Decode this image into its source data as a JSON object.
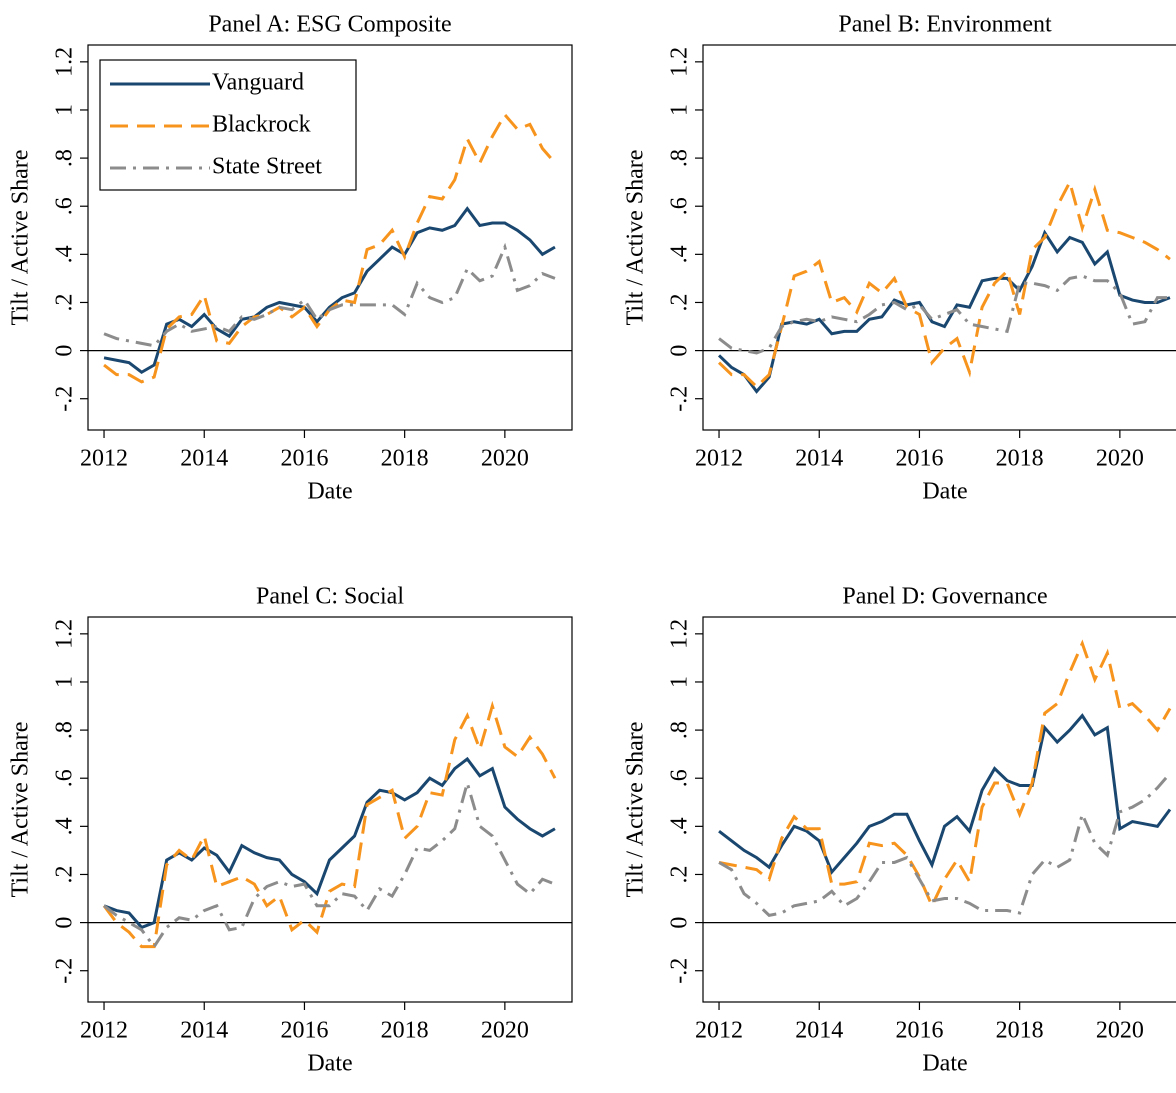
{
  "chart_data": [
    {
      "type": "line",
      "title": "Panel A: ESG Composite",
      "xlabel": "Date",
      "ylabel": "Tilt / Active Share",
      "x": [
        2012,
        2012.25,
        2012.5,
        2012.75,
        2013,
        2013.25,
        2013.5,
        2013.75,
        2014,
        2014.25,
        2014.5,
        2014.75,
        2015,
        2015.25,
        2015.5,
        2015.75,
        2016,
        2016.25,
        2016.5,
        2016.75,
        2017,
        2017.25,
        2017.5,
        2017.75,
        2018,
        2018.25,
        2018.5,
        2018.75,
        2019,
        2019.25,
        2019.5,
        2019.75,
        2020,
        2020.25,
        2020.5,
        2020.75,
        2021
      ],
      "series": [
        {
          "name": "Vanguard",
          "color": "#1a476f",
          "dash": "solid",
          "values": [
            -0.03,
            -0.04,
            -0.05,
            -0.09,
            -0.06,
            0.11,
            0.13,
            0.1,
            0.15,
            0.09,
            0.06,
            0.13,
            0.14,
            0.18,
            0.2,
            0.19,
            0.18,
            0.12,
            0.18,
            0.22,
            0.24,
            0.33,
            0.38,
            0.43,
            0.4,
            0.49,
            0.51,
            0.5,
            0.52,
            0.59,
            0.52,
            0.53,
            0.53,
            0.5,
            0.46,
            0.4,
            0.43
          ]
        },
        {
          "name": "Blackrock",
          "color": "#f7941d",
          "dash": "dashed",
          "values": [
            -0.06,
            -0.1,
            -0.1,
            -0.13,
            -0.11,
            0.09,
            0.14,
            0.15,
            0.23,
            0.04,
            0.03,
            0.1,
            0.14,
            0.15,
            0.18,
            0.14,
            0.18,
            0.1,
            0.17,
            0.21,
            0.2,
            0.42,
            0.44,
            0.5,
            0.39,
            0.53,
            0.64,
            0.63,
            0.71,
            0.88,
            0.78,
            0.89,
            0.98,
            0.92,
            0.94,
            0.84,
            0.78
          ]
        },
        {
          "name": "State Street",
          "color": "#8c8c8c",
          "dash": "dashdot",
          "values": [
            0.07,
            0.05,
            0.04,
            0.03,
            0.02,
            0.08,
            0.11,
            0.08,
            0.09,
            0.1,
            0.08,
            0.14,
            0.13,
            0.15,
            0.18,
            0.17,
            0.21,
            0.13,
            0.17,
            0.19,
            0.19,
            0.19,
            0.19,
            0.19,
            0.15,
            0.28,
            0.22,
            0.2,
            0.22,
            0.34,
            0.29,
            0.31,
            0.43,
            0.25,
            0.27,
            0.32,
            0.3
          ]
        }
      ],
      "xlim": [
        2011.68,
        2021.34
      ],
      "xticks": [
        2012,
        2014,
        2016,
        2018,
        2020
      ],
      "ylim": [
        -0.33,
        1.27
      ],
      "yticks": [
        {
          "value": -0.2,
          "label": "-.2"
        },
        0,
        {
          "value": 0.2,
          "label": ".2"
        },
        {
          "value": 0.4,
          "label": ".4"
        },
        {
          "value": 0.6,
          "label": ".6"
        },
        {
          "value": 0.8,
          "label": ".8"
        },
        1,
        {
          "value": 1.2,
          "label": "1.2"
        }
      ],
      "reference_line": 0,
      "legend": "upper left"
    },
    {
      "type": "line",
      "title": "Panel B: Environment",
      "xlabel": "Date",
      "ylabel": "Tilt / Active Share",
      "x": [
        2012,
        2012.25,
        2012.5,
        2012.75,
        2013,
        2013.25,
        2013.5,
        2013.75,
        2014,
        2014.25,
        2014.5,
        2014.75,
        2015,
        2015.25,
        2015.5,
        2015.75,
        2016,
        2016.25,
        2016.5,
        2016.75,
        2017,
        2017.25,
        2017.5,
        2017.75,
        2018,
        2018.25,
        2018.5,
        2018.75,
        2019,
        2019.25,
        2019.5,
        2019.75,
        2020,
        2020.25,
        2020.5,
        2020.75,
        2021
      ],
      "series": [
        {
          "name": "Vanguard",
          "color": "#1a476f",
          "dash": "solid",
          "values": [
            -0.02,
            -0.07,
            -0.1,
            -0.17,
            -0.11,
            0.11,
            0.12,
            0.11,
            0.13,
            0.07,
            0.08,
            0.08,
            0.13,
            0.14,
            0.21,
            0.19,
            0.2,
            0.12,
            0.1,
            0.19,
            0.18,
            0.29,
            0.3,
            0.3,
            0.25,
            0.35,
            0.49,
            0.41,
            0.47,
            0.45,
            0.36,
            0.41,
            0.23,
            0.21,
            0.2,
            0.2,
            0.22
          ]
        },
        {
          "name": "Blackrock",
          "color": "#f7941d",
          "dash": "dashed",
          "values": [
            -0.05,
            -0.1,
            -0.1,
            -0.15,
            -0.1,
            0.1,
            0.31,
            0.33,
            0.37,
            0.2,
            0.22,
            0.16,
            0.28,
            0.24,
            0.3,
            0.18,
            0.15,
            -0.05,
            0.01,
            0.05,
            -0.09,
            0.18,
            0.28,
            0.33,
            0.15,
            0.42,
            0.47,
            0.6,
            0.7,
            0.51,
            0.67,
            0.5,
            0.49,
            0.47,
            0.45,
            0.42,
            0.38
          ]
        },
        {
          "name": "State Street",
          "color": "#8c8c8c",
          "dash": "dashdot",
          "values": [
            0.05,
            0.01,
            0.0,
            -0.01,
            0.01,
            0.1,
            0.12,
            0.13,
            0.12,
            0.14,
            0.13,
            0.12,
            0.15,
            0.19,
            0.2,
            0.17,
            0.19,
            0.13,
            0.15,
            0.17,
            0.11,
            0.1,
            0.09,
            0.08,
            0.28,
            0.28,
            0.27,
            0.25,
            0.3,
            0.31,
            0.29,
            0.29,
            0.24,
            0.11,
            0.12,
            0.22,
            0.22
          ]
        }
      ],
      "xlim": [
        2011.68,
        2021.34
      ],
      "xticks": [
        2012,
        2014,
        2016,
        2018,
        2020
      ],
      "ylim": [
        -0.33,
        1.27
      ],
      "yticks": [
        {
          "value": -0.2,
          "label": "-.2"
        },
        0,
        {
          "value": 0.2,
          "label": ".2"
        },
        {
          "value": 0.4,
          "label": ".4"
        },
        {
          "value": 0.6,
          "label": ".6"
        },
        {
          "value": 0.8,
          "label": ".8"
        },
        1,
        {
          "value": 1.2,
          "label": "1.2"
        }
      ],
      "reference_line": 0
    },
    {
      "type": "line",
      "title": "Panel C: Social",
      "xlabel": "Date",
      "ylabel": "Tilt / Active Share",
      "x": [
        2012,
        2012.25,
        2012.5,
        2012.75,
        2013,
        2013.25,
        2013.5,
        2013.75,
        2014,
        2014.25,
        2014.5,
        2014.75,
        2015,
        2015.25,
        2015.5,
        2015.75,
        2016,
        2016.25,
        2016.5,
        2016.75,
        2017,
        2017.25,
        2017.5,
        2017.75,
        2018,
        2018.25,
        2018.5,
        2018.75,
        2019,
        2019.25,
        2019.5,
        2019.75,
        2020,
        2020.25,
        2020.5,
        2020.75,
        2021
      ],
      "series": [
        {
          "name": "Vanguard",
          "color": "#1a476f",
          "dash": "solid",
          "values": [
            0.07,
            0.05,
            0.04,
            -0.02,
            0.0,
            0.26,
            0.29,
            0.26,
            0.31,
            0.28,
            0.21,
            0.32,
            0.29,
            0.27,
            0.26,
            0.2,
            0.17,
            0.12,
            0.26,
            0.31,
            0.36,
            0.5,
            0.55,
            0.54,
            0.51,
            0.54,
            0.6,
            0.57,
            0.64,
            0.68,
            0.61,
            0.64,
            0.48,
            0.43,
            0.39,
            0.36,
            0.39
          ]
        },
        {
          "name": "Blackrock",
          "color": "#f7941d",
          "dash": "dashed",
          "values": [
            0.07,
            0.0,
            -0.04,
            -0.1,
            -0.1,
            0.24,
            0.3,
            0.26,
            0.36,
            0.15,
            0.17,
            0.19,
            0.16,
            0.07,
            0.11,
            -0.03,
            0.01,
            -0.04,
            0.13,
            0.16,
            0.15,
            0.49,
            0.52,
            0.55,
            0.35,
            0.4,
            0.54,
            0.53,
            0.76,
            0.86,
            0.72,
            0.9,
            0.73,
            0.69,
            0.77,
            0.7,
            0.6
          ]
        },
        {
          "name": "State Street",
          "color": "#8c8c8c",
          "dash": "dashdot",
          "values": [
            0.07,
            0.03,
            0.0,
            -0.03,
            -0.1,
            -0.02,
            0.02,
            0.01,
            0.05,
            0.07,
            -0.03,
            -0.02,
            0.1,
            0.15,
            0.17,
            0.15,
            0.16,
            0.07,
            0.07,
            0.12,
            0.11,
            0.05,
            0.14,
            0.11,
            0.2,
            0.31,
            0.3,
            0.34,
            0.39,
            0.58,
            0.4,
            0.36,
            0.26,
            0.16,
            0.12,
            0.18,
            0.16
          ]
        }
      ],
      "xlim": [
        2011.68,
        2021.34
      ],
      "xticks": [
        2012,
        2014,
        2016,
        2018,
        2020
      ],
      "ylim": [
        -0.33,
        1.27
      ],
      "yticks": [
        {
          "value": -0.2,
          "label": "-.2"
        },
        0,
        {
          "value": 0.2,
          "label": ".2"
        },
        {
          "value": 0.4,
          "label": ".4"
        },
        {
          "value": 0.6,
          "label": ".6"
        },
        {
          "value": 0.8,
          "label": ".8"
        },
        1,
        {
          "value": 1.2,
          "label": "1.2"
        }
      ],
      "reference_line": 0
    },
    {
      "type": "line",
      "title": "Panel D: Governance",
      "xlabel": "Date",
      "ylabel": "Tilt / Active Share",
      "x": [
        2012,
        2012.25,
        2012.5,
        2012.75,
        2013,
        2013.25,
        2013.5,
        2013.75,
        2014,
        2014.25,
        2014.5,
        2014.75,
        2015,
        2015.25,
        2015.5,
        2015.75,
        2016,
        2016.25,
        2016.5,
        2016.75,
        2017,
        2017.25,
        2017.5,
        2017.75,
        2018,
        2018.25,
        2018.5,
        2018.75,
        2019,
        2019.25,
        2019.5,
        2019.75,
        2020,
        2020.25,
        2020.5,
        2020.75,
        2021
      ],
      "series": [
        {
          "name": "Vanguard",
          "color": "#1a476f",
          "dash": "solid",
          "values": [
            0.38,
            0.34,
            0.3,
            0.27,
            0.23,
            0.32,
            0.4,
            0.38,
            0.34,
            0.21,
            0.27,
            0.33,
            0.4,
            0.42,
            0.45,
            0.45,
            0.34,
            0.24,
            0.4,
            0.44,
            0.38,
            0.55,
            0.64,
            0.59,
            0.57,
            0.57,
            0.81,
            0.75,
            0.8,
            0.86,
            0.78,
            0.81,
            0.39,
            0.42,
            0.41,
            0.4,
            0.47
          ]
        },
        {
          "name": "Blackrock",
          "color": "#f7941d",
          "dash": "dashed",
          "values": [
            0.25,
            0.24,
            0.23,
            0.22,
            0.18,
            0.35,
            0.44,
            0.39,
            0.39,
            0.16,
            0.16,
            0.17,
            0.33,
            0.32,
            0.33,
            0.28,
            0.19,
            0.07,
            0.18,
            0.26,
            0.17,
            0.48,
            0.58,
            0.58,
            0.45,
            0.58,
            0.87,
            0.91,
            1.04,
            1.16,
            1.01,
            1.12,
            0.89,
            0.91,
            0.86,
            0.8,
            0.89
          ]
        },
        {
          "name": "State Street",
          "color": "#8c8c8c",
          "dash": "dashdot",
          "values": [
            0.25,
            0.22,
            0.12,
            0.08,
            0.03,
            0.04,
            0.07,
            0.08,
            0.09,
            0.13,
            0.07,
            0.1,
            0.17,
            0.25,
            0.25,
            0.27,
            0.18,
            0.09,
            0.1,
            0.1,
            0.08,
            0.05,
            0.05,
            0.05,
            0.04,
            0.2,
            0.26,
            0.23,
            0.26,
            0.45,
            0.33,
            0.28,
            0.46,
            0.48,
            0.51,
            0.56,
            0.62
          ]
        }
      ],
      "xlim": [
        2011.68,
        2021.34
      ],
      "xticks": [
        2012,
        2014,
        2016,
        2018,
        2020
      ],
      "ylim": [
        -0.33,
        1.27
      ],
      "yticks": [
        {
          "value": -0.2,
          "label": "-.2"
        },
        0,
        {
          "value": 0.2,
          "label": ".2"
        },
        {
          "value": 0.4,
          "label": ".4"
        },
        {
          "value": 0.6,
          "label": ".6"
        },
        {
          "value": 0.8,
          "label": ".8"
        },
        1,
        {
          "value": 1.2,
          "label": "1.2"
        }
      ],
      "reference_line": 0
    }
  ]
}
